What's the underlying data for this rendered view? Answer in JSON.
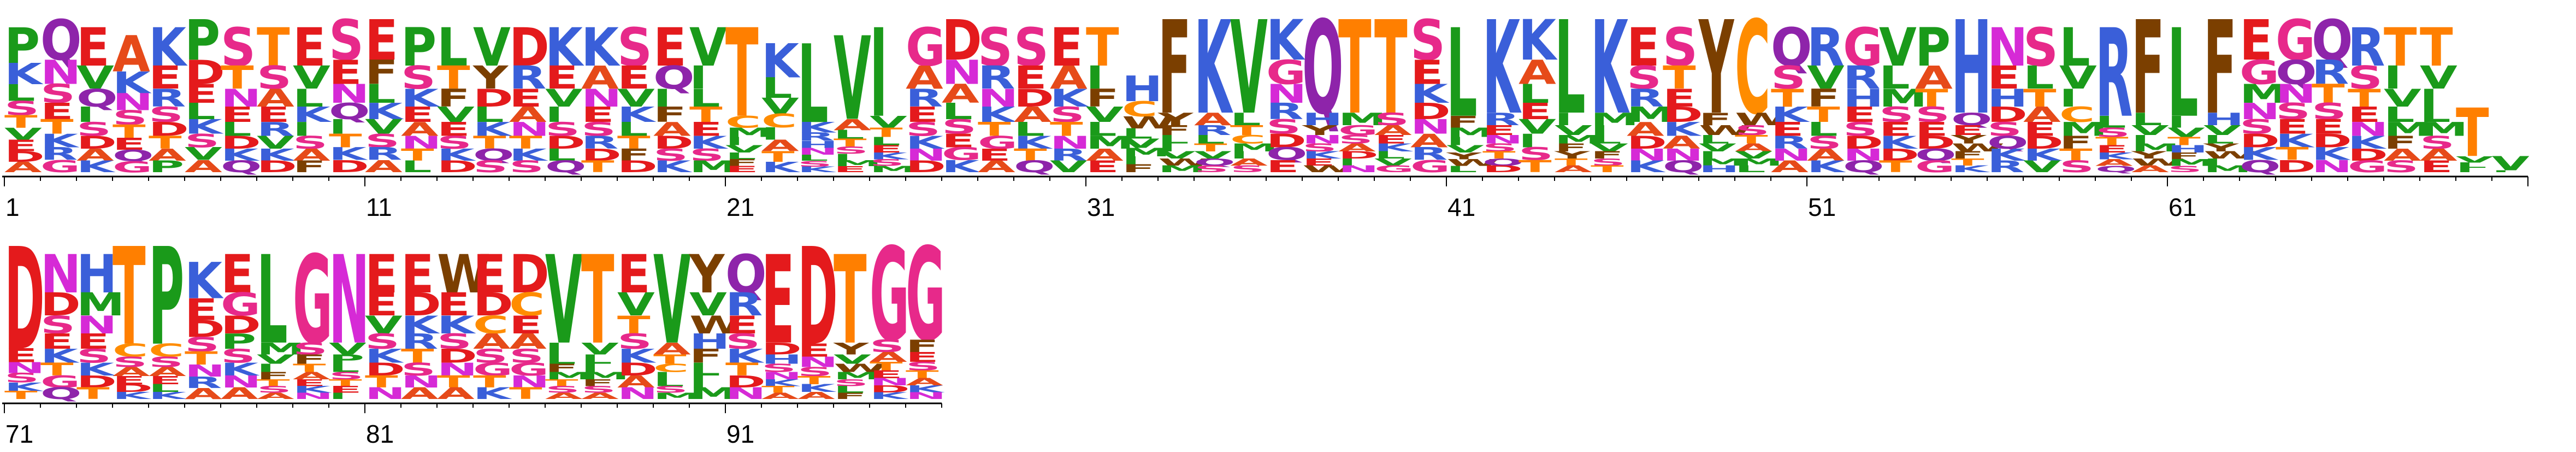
{
  "figure": {
    "type": "sequence-logo",
    "alphabet": "protein",
    "row1_start": 1,
    "row1_length": 70,
    "row2_start": 71,
    "row2_length": 26,
    "tick_labels_row1": [
      "1",
      "11",
      "21",
      "31",
      "41",
      "51",
      "61"
    ],
    "tick_labels_row2": [
      "71",
      "81",
      "91"
    ]
  },
  "colors": {
    "D": "#e41a1c",
    "E": "#e41a1c",
    "K": "#3a5fd9",
    "R": "#3a5fd9",
    "H": "#3a5fd9",
    "G": "#e7298a",
    "S": "#e7298a",
    "T": "#ff7f00",
    "N": "#d62ad6",
    "Q": "#8e24aa",
    "C": "#ff8c00",
    "A": "#e64a19",
    "V": "#1a9a1a",
    "L": "#1a9a1a",
    "I": "#1a9a1a",
    "M": "#1a9a1a",
    "F": "#7b3f00",
    "W": "#7b3f00",
    "Y": "#7b3f00",
    "P": "#1a9a1a"
  },
  "dominant_residues": [
    "P",
    "Q",
    "E",
    "A",
    "K",
    "P",
    "S",
    "T",
    "E",
    "S",
    "E",
    "P",
    "L",
    "V",
    "D",
    "K",
    "K",
    "S",
    "E",
    "V",
    "T",
    "K",
    "L",
    "V",
    "I",
    "G",
    "D",
    "S",
    "S",
    "E",
    "T",
    "H",
    "F",
    "K",
    "V",
    "K",
    "Q",
    "T",
    "T",
    "S",
    "L",
    "K",
    "K",
    "L",
    "K",
    "E",
    "S",
    "Y",
    "C",
    "Q",
    "R",
    "G",
    "V",
    "P",
    "H",
    "N",
    "S",
    "L",
    "R",
    "F",
    "L",
    "F",
    "E",
    "G",
    "Q",
    "R",
    "T",
    "T",
    "T",
    "V",
    "D",
    "N",
    "H",
    "T",
    "P",
    "K",
    "E",
    "L",
    "G",
    "N",
    "E",
    "E",
    "W",
    "E",
    "D",
    "V",
    "T",
    "E",
    "V",
    "Y",
    "Q",
    "E",
    "D",
    "T",
    "G",
    "G"
  ],
  "position_heights": [
    0.9,
    0.95,
    0.9,
    0.85,
    0.9,
    0.95,
    0.9,
    0.9,
    0.9,
    0.95,
    0.95,
    0.9,
    0.9,
    0.9,
    0.9,
    0.9,
    0.9,
    0.9,
    0.9,
    0.9,
    0.9,
    0.8,
    0.8,
    0.85,
    0.9,
    0.9,
    0.95,
    0.9,
    0.9,
    0.9,
    0.9,
    0.6,
    0.95,
    0.95,
    0.95,
    0.95,
    0.95,
    0.95,
    0.95,
    0.95,
    0.9,
    0.95,
    0.95,
    0.95,
    0.95,
    0.9,
    0.9,
    0.95,
    0.95,
    0.9,
    0.9,
    0.9,
    0.9,
    0.9,
    0.95,
    0.9,
    0.9,
    0.9,
    0.9,
    0.95,
    0.9,
    0.95,
    0.95,
    0.95,
    0.95,
    0.9,
    0.9,
    0.9,
    0.4,
    0.1,
    0.95,
    0.9,
    0.9,
    0.95,
    0.95,
    0.85,
    0.9,
    0.9,
    0.9,
    0.9,
    0.9,
    0.9,
    0.9,
    0.9,
    0.9,
    0.9,
    0.9,
    0.9,
    0.9,
    0.9,
    0.9,
    0.9,
    0.95,
    0.9,
    0.95,
    0.95
  ],
  "position_stacks": [
    [
      "P",
      "K",
      "L",
      "S",
      "T",
      "V",
      "E",
      "D",
      "A"
    ],
    [
      "Q",
      "N",
      "S",
      "E",
      "T",
      "K",
      "R",
      "G"
    ],
    [
      "E",
      "V",
      "Q",
      "I",
      "S",
      "D",
      "A",
      "K"
    ],
    [
      "A",
      "K",
      "N",
      "S",
      "T",
      "E",
      "Q",
      "G"
    ],
    [
      "K",
      "E",
      "R",
      "S",
      "D",
      "T",
      "A",
      "P"
    ],
    [
      "P",
      "D",
      "E",
      "L",
      "K",
      "S",
      "V",
      "A"
    ],
    [
      "S",
      "T",
      "N",
      "E",
      "L",
      "D",
      "K",
      "Q"
    ],
    [
      "T",
      "S",
      "A",
      "E",
      "R",
      "V",
      "K",
      "D"
    ],
    [
      "E",
      "V",
      "L",
      "K",
      "I",
      "S",
      "A",
      "F"
    ],
    [
      "S",
      "E",
      "N",
      "Q",
      "I",
      "T",
      "K",
      "D"
    ],
    [
      "E",
      "F",
      "L",
      "K",
      "V",
      "S",
      "R",
      "A"
    ],
    [
      "P",
      "S",
      "K",
      "E",
      "A",
      "N",
      "T",
      "L"
    ],
    [
      "L",
      "T",
      "F",
      "V",
      "E",
      "S",
      "K",
      "D"
    ],
    [
      "V",
      "Y",
      "D",
      "L",
      "K",
      "T",
      "Q",
      "S"
    ],
    [
      "D",
      "R",
      "E",
      "A",
      "N",
      "T",
      "K",
      "S"
    ],
    [
      "K",
      "E",
      "V",
      "I",
      "S",
      "D",
      "L",
      "Q"
    ],
    [
      "K",
      "A",
      "N",
      "E",
      "S",
      "R",
      "D",
      "T"
    ],
    [
      "S",
      "E",
      "V",
      "K",
      "L",
      "T",
      "F",
      "D"
    ],
    [
      "E",
      "Q",
      "I",
      "F",
      "A",
      "D",
      "S",
      "K"
    ],
    [
      "V",
      "I",
      "L",
      "T",
      "E",
      "K",
      "S",
      "M"
    ],
    [
      "T",
      "C",
      "M",
      "I",
      "V",
      "L",
      "F",
      "E"
    ],
    [
      "K",
      "L",
      "V",
      "C",
      "I",
      "A",
      "T",
      "K"
    ],
    [
      "L",
      "K",
      "R",
      "H",
      "N",
      "L",
      "S",
      "K"
    ],
    [
      "V",
      "A",
      "L",
      "T",
      "S",
      "I",
      "M",
      "E"
    ],
    [
      "I",
      "V",
      "T",
      "L",
      "E",
      "K",
      "S",
      "M"
    ],
    [
      "G",
      "A",
      "R",
      "E",
      "S",
      "K",
      "N",
      "D"
    ],
    [
      "D",
      "N",
      "A",
      "L",
      "S",
      "E",
      "G",
      "K"
    ],
    [
      "S",
      "R",
      "N",
      "K",
      "T",
      "G",
      "E",
      "A"
    ],
    [
      "S",
      "E",
      "D",
      "A",
      "L",
      "K",
      "T",
      "Q"
    ],
    [
      "E",
      "A",
      "K",
      "S",
      "T",
      "N",
      "R",
      "V"
    ],
    [
      "T",
      "I",
      "F",
      "V",
      "L",
      "M",
      "A",
      "E"
    ],
    [
      "H",
      "C",
      "W",
      "L",
      "V",
      "M",
      "I",
      "F"
    ],
    [
      "F",
      "Y",
      "F",
      "L",
      "I",
      "V",
      "W",
      "M"
    ],
    [
      "K",
      "A",
      "R",
      "L",
      "T",
      "V",
      "Q",
      "S"
    ],
    [
      "V",
      "L",
      "T",
      "C",
      "M",
      "I",
      "A",
      "S"
    ],
    [
      "K",
      "G",
      "N",
      "R",
      "S",
      "D",
      "Q",
      "E"
    ],
    [
      "Q",
      "H",
      "Y",
      "N",
      "S",
      "K",
      "E",
      "W"
    ],
    [
      "T",
      "M",
      "G",
      "S",
      "A",
      "D",
      "I",
      "N"
    ],
    [
      "T",
      "S",
      "A",
      "E",
      "K",
      "L",
      "V",
      "G"
    ],
    [
      "S",
      "E",
      "K",
      "D",
      "N",
      "A",
      "R",
      "G"
    ],
    [
      "L",
      "F",
      "M",
      "I",
      "V",
      "Y",
      "W",
      "L"
    ],
    [
      "K",
      "R",
      "E",
      "N",
      "S",
      "T",
      "Q",
      "D"
    ],
    [
      "K",
      "A",
      "L",
      "E",
      "V",
      "I",
      "S",
      "T"
    ],
    [
      "L",
      "I",
      "V",
      "M",
      "F",
      "Y",
      "T",
      "A"
    ],
    [
      "K",
      "M",
      "I",
      "L",
      "V",
      "F",
      "S",
      "T"
    ],
    [
      "E",
      "S",
      "R",
      "M",
      "A",
      "D",
      "N",
      "K"
    ],
    [
      "S",
      "T",
      "E",
      "D",
      "K",
      "A",
      "N",
      "Q"
    ],
    [
      "Y",
      "F",
      "W",
      "L",
      "V",
      "I",
      "M",
      "H"
    ],
    [
      "C",
      "W",
      "S",
      "T",
      "A",
      "V",
      "M",
      "L"
    ],
    [
      "Q",
      "S",
      "T",
      "K",
      "E",
      "R",
      "N",
      "A"
    ],
    [
      "R",
      "V",
      "F",
      "T",
      "L",
      "S",
      "A",
      "K"
    ],
    [
      "G",
      "R",
      "H",
      "E",
      "S",
      "D",
      "N",
      "Q"
    ],
    [
      "V",
      "L",
      "M",
      "S",
      "E",
      "K",
      "D",
      "T"
    ],
    [
      "P",
      "A",
      "T",
      "S",
      "E",
      "D",
      "Q",
      "G"
    ],
    [
      "H",
      "Q",
      "E",
      "Y",
      "W",
      "F",
      "T",
      "K"
    ],
    [
      "N",
      "E",
      "H",
      "D",
      "S",
      "Q",
      "K",
      "R"
    ],
    [
      "S",
      "L",
      "T",
      "A",
      "E",
      "D",
      "K",
      "V"
    ],
    [
      "L",
      "V",
      "I",
      "C",
      "M",
      "F",
      "T",
      "S"
    ],
    [
      "R",
      "L",
      "S",
      "T",
      "E",
      "K",
      "A",
      "Q"
    ],
    [
      "F",
      "L",
      "V",
      "I",
      "M",
      "Y",
      "W",
      "A"
    ],
    [
      "L",
      "I",
      "V",
      "T",
      "H",
      "F",
      "M",
      "S"
    ],
    [
      "F",
      "H",
      "V",
      "L",
      "Y",
      "W",
      "I",
      "M"
    ],
    [
      "E",
      "G",
      "M",
      "N",
      "S",
      "D",
      "K",
      "Q"
    ],
    [
      "G",
      "Q",
      "N",
      "S",
      "E",
      "K",
      "T",
      "D"
    ],
    [
      "Q",
      "R",
      "T",
      "S",
      "E",
      "D",
      "K",
      "N"
    ],
    [
      "R",
      "S",
      "T",
      "E",
      "N",
      "K",
      "D",
      "G"
    ],
    [
      "T",
      "I",
      "V",
      "L",
      "M",
      "F",
      "A",
      "S"
    ],
    [
      "T",
      "V",
      "I",
      "L",
      "M",
      "S",
      "A",
      "E"
    ],
    [
      "T",
      "V",
      "L",
      "I"
    ],
    [
      "V",
      "I"
    ],
    [
      "D",
      "E",
      "N",
      "S",
      "K",
      "T"
    ],
    [
      "N",
      "D",
      "S",
      "E",
      "K",
      "T",
      "G",
      "Q"
    ],
    [
      "H",
      "M",
      "N",
      "E",
      "S",
      "K",
      "D",
      "T"
    ],
    [
      "T",
      "C",
      "S",
      "A",
      "E",
      "D",
      "K"
    ],
    [
      "P",
      "C",
      "S",
      "A",
      "E",
      "L",
      "K"
    ],
    [
      "K",
      "E",
      "D",
      "S",
      "T",
      "N",
      "R",
      "A"
    ],
    [
      "E",
      "G",
      "D",
      "P",
      "S",
      "K",
      "N",
      "A"
    ],
    [
      "L",
      "M",
      "V",
      "I",
      "F",
      "T",
      "S",
      "A"
    ],
    [
      "G",
      "S",
      "F",
      "T",
      "A",
      "E",
      "K",
      "N"
    ],
    [
      "N",
      "V",
      "P",
      "L",
      "S",
      "T",
      "E",
      "I"
    ],
    [
      "E",
      "E",
      "V",
      "S",
      "K",
      "D",
      "T",
      "N"
    ],
    [
      "E",
      "D",
      "K",
      "R",
      "T",
      "S",
      "N",
      "A"
    ],
    [
      "W",
      "E",
      "K",
      "S",
      "D",
      "N",
      "T",
      "A"
    ],
    [
      "E",
      "D",
      "C",
      "A",
      "S",
      "G",
      "T",
      "K"
    ],
    [
      "D",
      "C",
      "E",
      "A",
      "S",
      "G",
      "N",
      "T"
    ],
    [
      "V",
      "I",
      "L",
      "F",
      "M",
      "T",
      "S",
      "A"
    ],
    [
      "T",
      "V",
      "L",
      "I",
      "M",
      "F",
      "S",
      "A"
    ],
    [
      "E",
      "V",
      "T",
      "S",
      "K",
      "D",
      "A",
      "N"
    ],
    [
      "V",
      "A",
      "T",
      "C",
      "I",
      "L",
      "S",
      "M"
    ],
    [
      "Y",
      "V",
      "W",
      "H",
      "F",
      "L",
      "I",
      "M"
    ],
    [
      "Q",
      "R",
      "E",
      "S",
      "K",
      "T",
      "D",
      "N"
    ],
    [
      "E",
      "D",
      "H",
      "S",
      "N",
      "K",
      "T",
      "A"
    ],
    [
      "D",
      "E",
      "N",
      "S",
      "T",
      "K",
      "A"
    ],
    [
      "T",
      "Y",
      "V",
      "W",
      "M",
      "S",
      "L",
      "F"
    ],
    [
      "G",
      "S",
      "A",
      "T",
      "E",
      "N",
      "D",
      "K"
    ],
    [
      "G",
      "F",
      "E",
      "S",
      "T",
      "A",
      "K",
      "N"
    ]
  ],
  "dominant_heavy": [
    21,
    23,
    24,
    25,
    33,
    34,
    35,
    37,
    38,
    39,
    41,
    42,
    44,
    45,
    48,
    49,
    55,
    59,
    60,
    61,
    62,
    69,
    70,
    71,
    74,
    75,
    78,
    79,
    80,
    86,
    87,
    89,
    92,
    93,
    94,
    95,
    96
  ]
}
